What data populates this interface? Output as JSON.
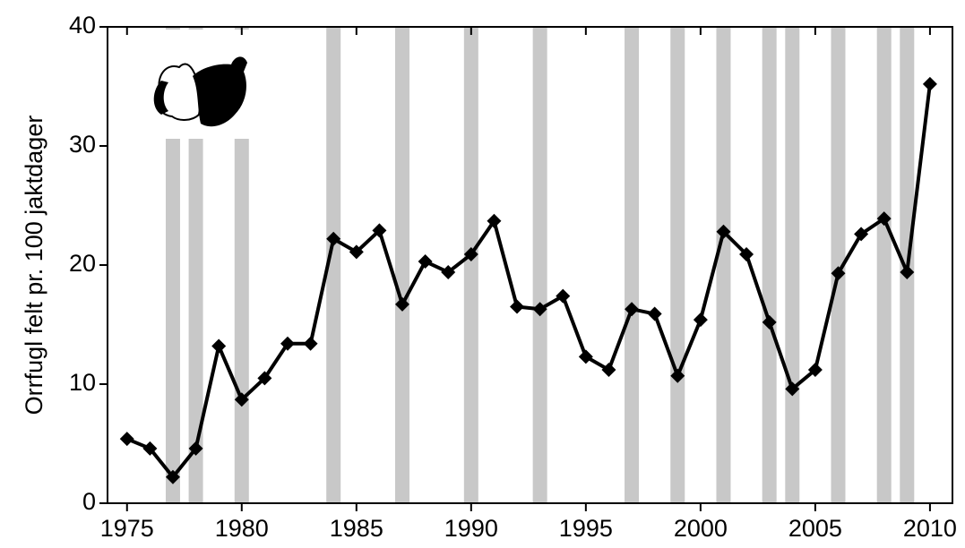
{
  "chart_data": {
    "type": "line",
    "y_label": "Orrfugl felt pr. 100 jaktdager",
    "x": [
      1975,
      1976,
      1977,
      1978,
      1979,
      1980,
      1981,
      1982,
      1983,
      1984,
      1985,
      1986,
      1987,
      1988,
      1989,
      1990,
      1991,
      1992,
      1993,
      1994,
      1995,
      1996,
      1997,
      1998,
      1999,
      2000,
      2001,
      2002,
      2003,
      2004,
      2005,
      2006,
      2007,
      2008,
      2009,
      2010
    ],
    "values": [
      5.4,
      4.6,
      2.2,
      4.6,
      13.2,
      8.7,
      10.5,
      13.4,
      13.4,
      22.2,
      21.1,
      22.9,
      16.7,
      20.3,
      19.4,
      20.9,
      23.7,
      16.5,
      16.3,
      17.4,
      12.3,
      11.2,
      16.3,
      15.9,
      10.7,
      15.4,
      22.8,
      20.9,
      15.2,
      9.6,
      11.2,
      19.3,
      22.6,
      23.9,
      19.4,
      35.2
    ],
    "color": "#000000",
    "shaded_years": [
      1977,
      1978,
      1980,
      1984,
      1987,
      1990,
      1993,
      1997,
      1999,
      2001,
      2003,
      2004,
      2006,
      2008,
      2009
    ],
    "shade_color": "#c8c8c8",
    "xlim": [
      1974.15,
      2010.98
    ],
    "xticks": [
      1975,
      1980,
      1985,
      1990,
      1995,
      2000,
      2005,
      2010
    ],
    "ylim": [
      0,
      40
    ],
    "yticks": [
      0,
      10,
      20,
      30,
      40
    ]
  }
}
